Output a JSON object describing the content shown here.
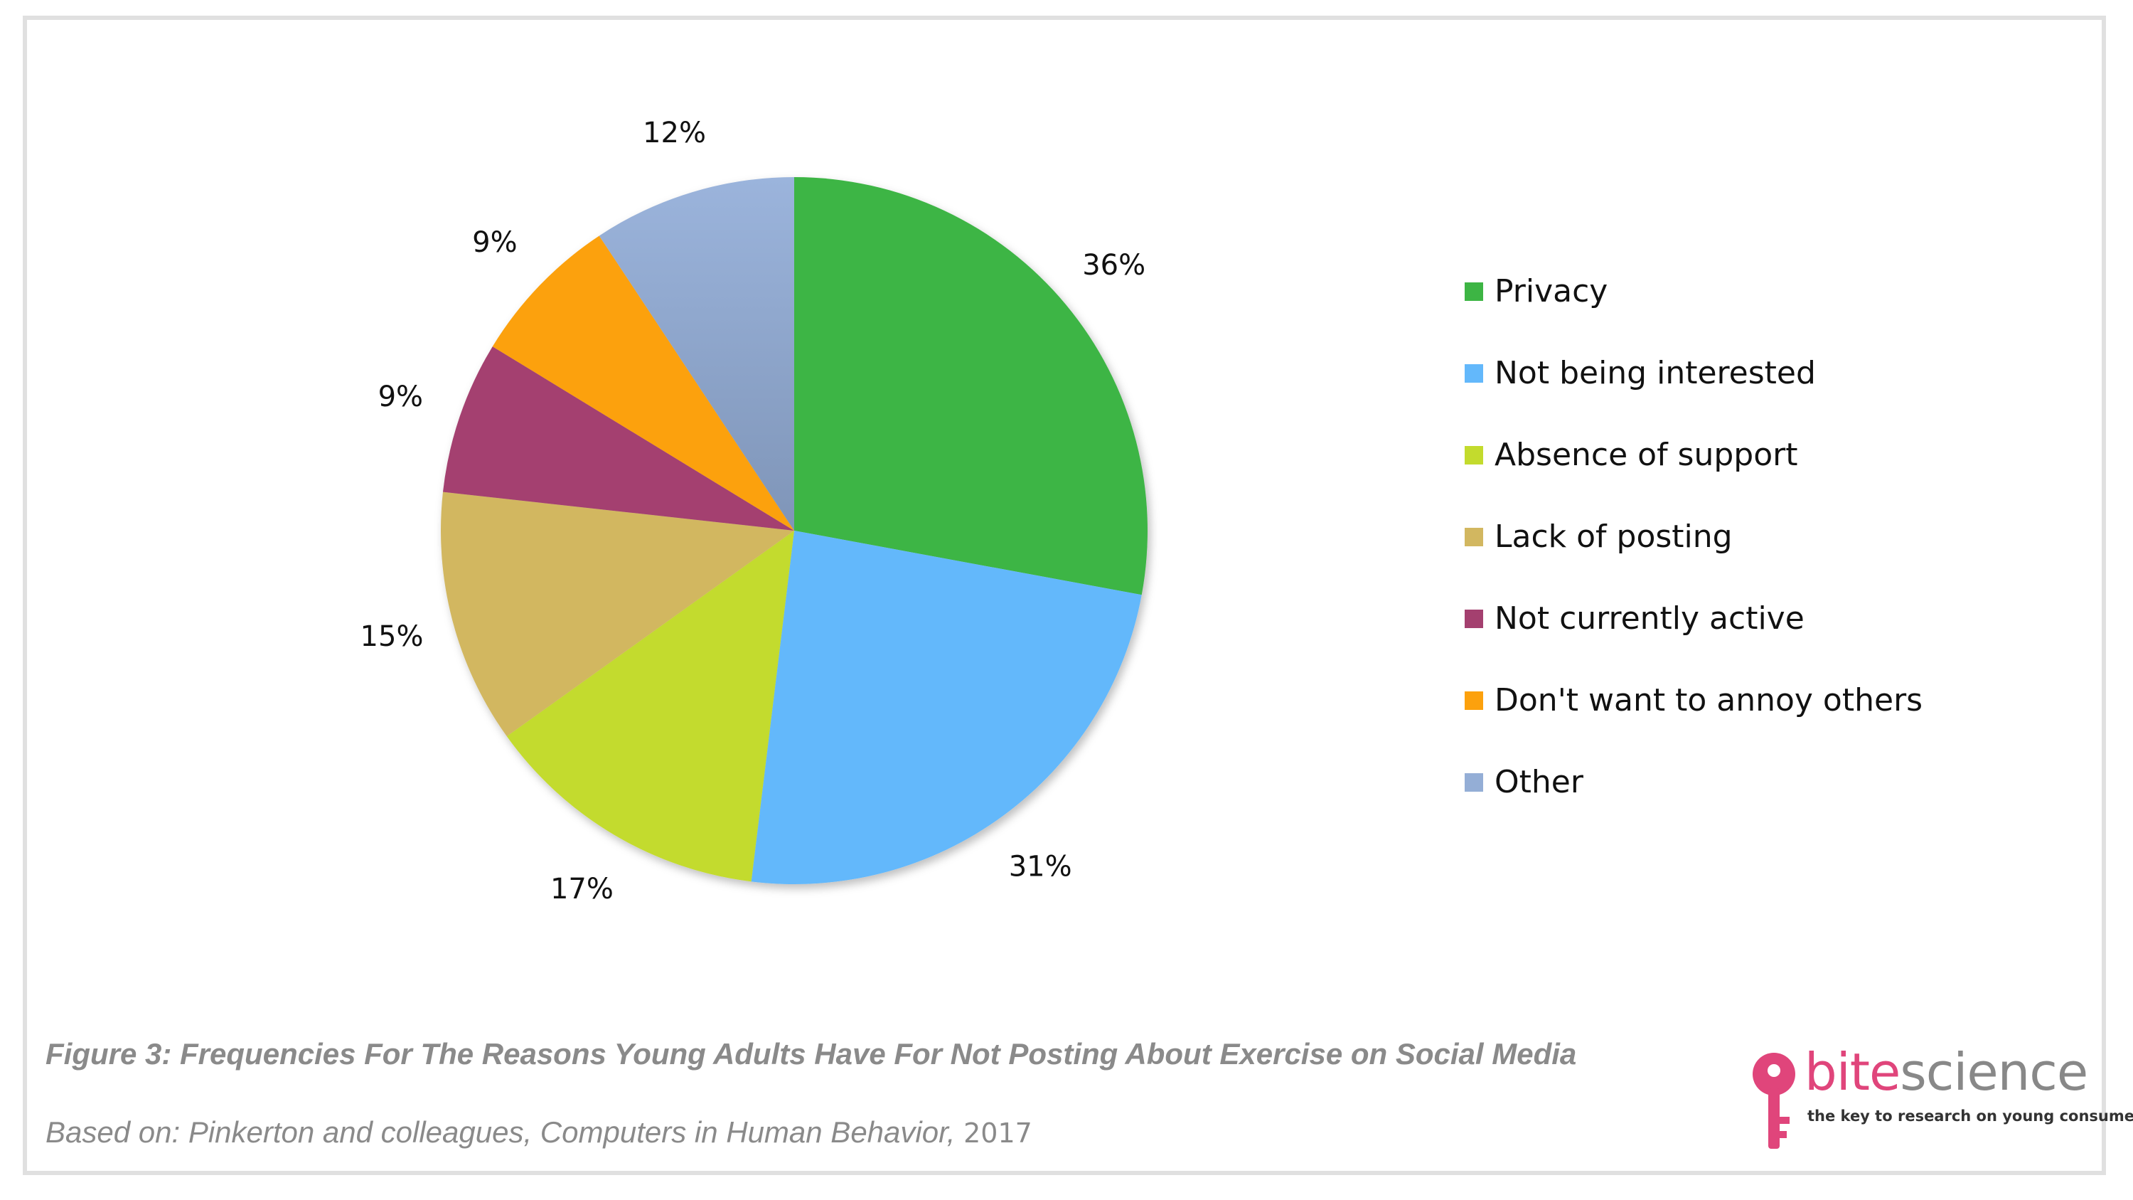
{
  "chart_data": {
    "type": "pie",
    "categories": [
      "Privacy",
      "Not being interested",
      "Absence of support",
      "Lack of posting",
      "Not currently active",
      "Don't want to annoy others",
      "Other"
    ],
    "values": [
      36,
      31,
      17,
      15,
      9,
      9,
      12
    ],
    "labels": [
      "36%",
      "31%",
      "17%",
      "15%",
      "9%",
      "9%",
      "12%"
    ],
    "colors": [
      "#3db544",
      "#63b8fb",
      "#c3db2d",
      "#d2b760",
      "#a4406f",
      "#fca10d",
      "#94aed6"
    ],
    "legend_position": "right",
    "start_angle": "top",
    "direction": "clockwise"
  },
  "legend": {
    "items": [
      {
        "label": "Privacy",
        "color": "#3db544"
      },
      {
        "label": "Not being interested",
        "color": "#63b8fb"
      },
      {
        "label": "Absence of support",
        "color": "#c3db2d"
      },
      {
        "label": "Lack of posting",
        "color": "#d2b760"
      },
      {
        "label": "Not currently active",
        "color": "#a4406f"
      },
      {
        "label": "Don't want to annoy others",
        "color": "#fca10d"
      },
      {
        "label": "Other",
        "color": "#94aed6"
      }
    ]
  },
  "caption": "Figure 3: Frequencies For The Reasons Young Adults Have For Not Posting About Exercise on Social Media",
  "source": {
    "text": "Based on: Pinkerton and colleagues, Computers in Human Behavior,",
    "year": "2017"
  },
  "logo": {
    "name_part1": "bite",
    "name_part2": "science",
    "tagline": "the key to research on young consumers",
    "brand_color": "#e0457b",
    "icon": "key-icon"
  }
}
